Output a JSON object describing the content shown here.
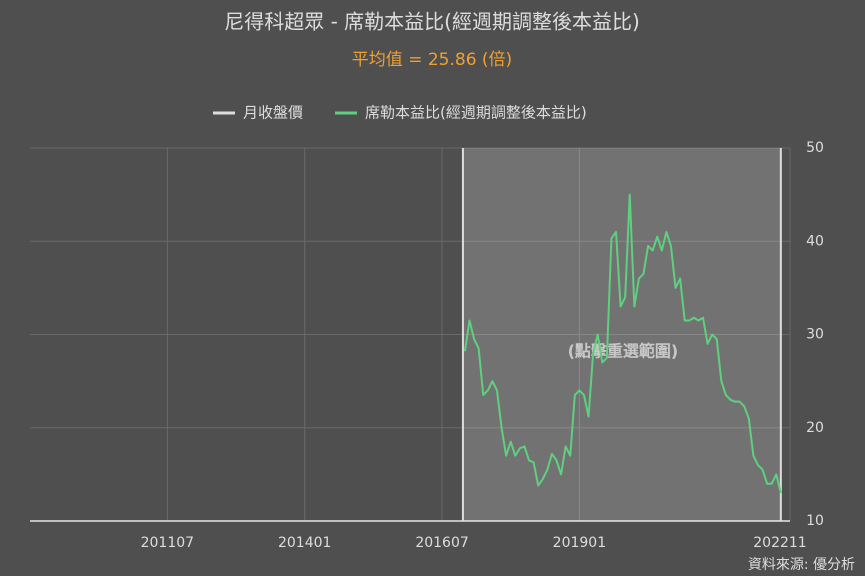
{
  "chart_data": {
    "type": "line",
    "title": "尼得科超眾 - 席勒本益比(經週期調整後本益比)",
    "subtitle": "平均值 = 25.86 (倍)",
    "annotation": "(點擊重選範圍)",
    "source": "資料來源: 優分析",
    "x": [
      "201612",
      "201701",
      "201702",
      "201703",
      "201704",
      "201705",
      "201706",
      "201707",
      "201708",
      "201709",
      "201710",
      "201711",
      "201712",
      "201801",
      "201802",
      "201803",
      "201804",
      "201805",
      "201806",
      "201807",
      "201808",
      "201809",
      "201810",
      "201811",
      "201812",
      "201901",
      "201902",
      "201903",
      "201904",
      "201905",
      "201906",
      "201907",
      "201908",
      "201909",
      "201910",
      "201911",
      "201912",
      "202001",
      "202002",
      "202003",
      "202004",
      "202005",
      "202006",
      "202007",
      "202008",
      "202009",
      "202010",
      "202011",
      "202012",
      "202101",
      "202102",
      "202103",
      "202104",
      "202105",
      "202106",
      "202107",
      "202108",
      "202109",
      "202110",
      "202111",
      "202112",
      "202201",
      "202202",
      "202203",
      "202204",
      "202205",
      "202206",
      "202207",
      "202208",
      "202209"
    ],
    "series": [
      {
        "name": "月收盤價",
        "color": "#dddddd",
        "values": [
          null,
          null,
          null,
          null,
          null,
          null,
          null,
          null,
          null,
          null,
          null,
          null,
          null,
          null,
          null,
          null,
          null,
          null,
          null,
          null,
          null,
          null,
          null,
          null,
          null,
          null,
          null,
          null,
          null,
          null,
          null,
          null,
          null,
          null,
          null,
          null,
          null,
          null,
          null,
          null,
          null,
          null,
          null,
          null,
          null,
          null,
          null,
          null,
          null,
          null,
          null,
          null,
          null,
          null,
          null,
          null,
          null,
          null,
          null,
          null,
          null,
          null,
          null,
          null,
          null,
          null,
          null,
          null,
          null,
          null
        ]
      },
      {
        "name": "席勒本益比(經週期調整後本益比)",
        "color": "#5fcf80",
        "values": [
          28.2,
          31.5,
          29.5,
          28.5,
          23.5,
          24,
          25,
          24,
          20,
          17,
          18.5,
          17,
          17.8,
          18,
          16.5,
          16.3,
          13.8,
          14.5,
          15.5,
          17.2,
          16.5,
          15,
          18,
          17,
          23.5,
          24,
          23.5,
          21.2,
          28,
          30,
          27,
          27.5,
          40.3,
          41,
          33,
          34,
          45,
          33,
          36,
          36.5,
          39.5,
          39,
          40.5,
          39,
          41,
          39.5,
          35,
          36,
          31.5,
          31.5,
          31.8,
          31.5,
          31.8,
          29,
          30,
          29.5,
          25,
          23.5,
          23,
          22.8,
          22.8,
          22.3,
          21,
          17,
          16,
          15.5,
          14,
          14,
          15,
          13
        ]
      }
    ],
    "xlim": [
      "200901",
      "202211"
    ],
    "xticks": [
      "201107",
      "201401",
      "201607",
      "201901",
      "202211"
    ],
    "ylim": [
      10,
      50
    ],
    "yticks": [
      10,
      20,
      30,
      40,
      50
    ],
    "grid": true
  }
}
